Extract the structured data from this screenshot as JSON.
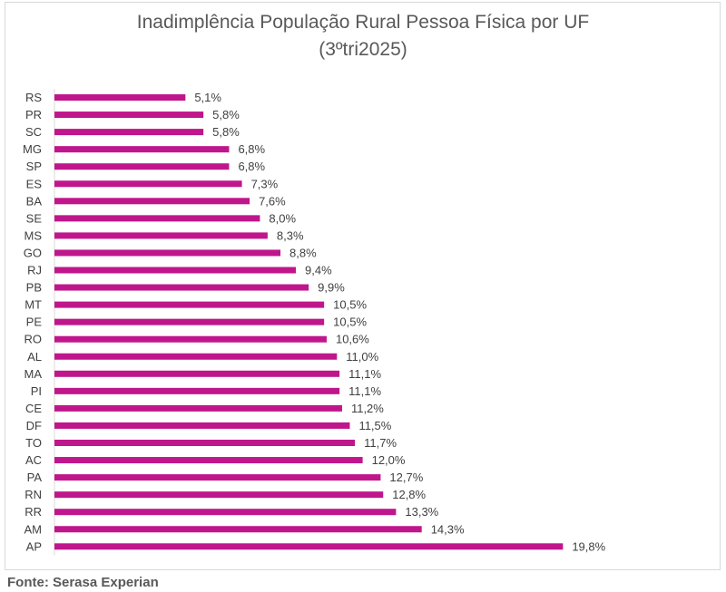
{
  "chart_data": {
    "type": "bar",
    "orientation": "horizontal",
    "title": "Inadimplência População Rural Pessoa Física por UF",
    "subtitle": "(3ºtri2025)",
    "xlabel": "",
    "ylabel": "",
    "grid": false,
    "legend": "none",
    "xlim": [
      0,
      20
    ],
    "bar_color": "#c0168c",
    "categories": [
      "RS",
      "PR",
      "SC",
      "MG",
      "SP",
      "ES",
      "BA",
      "SE",
      "MS",
      "GO",
      "RJ",
      "PB",
      "MT",
      "PE",
      "RO",
      "AL",
      "MA",
      "PI",
      "CE",
      "DF",
      "TO",
      "AC",
      "PA",
      "RN",
      "RR",
      "AM",
      "AP"
    ],
    "values": [
      5.1,
      5.8,
      5.8,
      6.8,
      6.8,
      7.3,
      7.6,
      8.0,
      8.3,
      8.8,
      9.4,
      9.9,
      10.5,
      10.5,
      10.6,
      11.0,
      11.1,
      11.1,
      11.2,
      11.5,
      11.7,
      12.0,
      12.7,
      12.8,
      13.3,
      14.3,
      19.8
    ],
    "data_labels": [
      "5,1%",
      "5,8%",
      "5,8%",
      "6,8%",
      "6,8%",
      "7,3%",
      "7,6%",
      "8,0%",
      "8,3%",
      "8,8%",
      "9,4%",
      "9,9%",
      "10,5%",
      "10,5%",
      "10,6%",
      "11,0%",
      "11,1%",
      "11,1%",
      "11,2%",
      "11,5%",
      "11,7%",
      "12,0%",
      "12,7%",
      "12,8%",
      "13,3%",
      "14,3%",
      "19,8%"
    ]
  },
  "source": "Fonte: Serasa Experian"
}
